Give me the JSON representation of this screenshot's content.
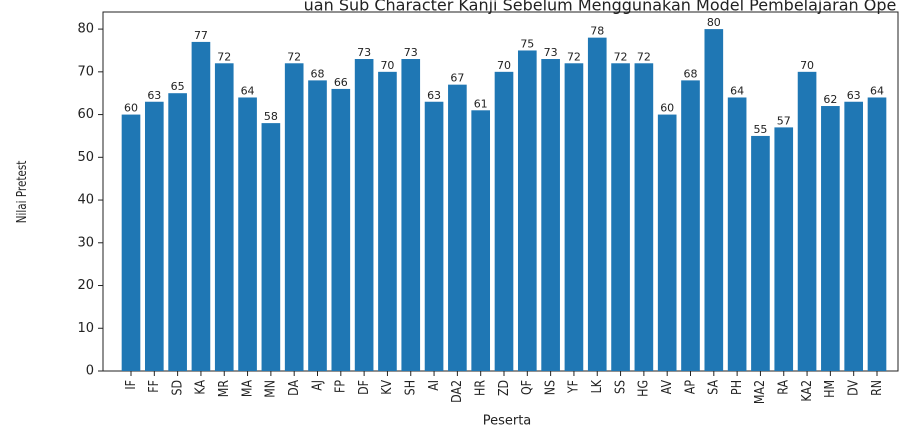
{
  "chart_data": {
    "type": "bar",
    "title": "uan Sub Character Kanji Sebelum Menggunakan Model Pembelajaran Ope",
    "x_label": "Peserta",
    "y_label": "Nilai Pretest",
    "categories": [
      "IF",
      "FF",
      "SD",
      "KA",
      "MR",
      "MA",
      "MN",
      "DA",
      "AJ",
      "FP",
      "DF",
      "KV",
      "SH",
      "AI",
      "DA2",
      "HR",
      "ZD",
      "QF",
      "NS",
      "YF",
      "LK",
      "SS",
      "HG",
      "AV",
      "AP",
      "SA",
      "PH",
      "MA2",
      "RA",
      "KA2",
      "HM",
      "DV",
      "RN"
    ],
    "values": [
      60,
      63,
      65,
      77,
      72,
      64,
      58,
      72,
      68,
      66,
      73,
      70,
      73,
      63,
      67,
      61,
      70,
      75,
      73,
      72,
      78,
      72,
      72,
      60,
      68,
      80,
      64,
      55,
      57,
      70,
      62,
      63,
      64
    ],
    "color": "#1f77b4",
    "ylim": [
      0,
      84
    ],
    "yticks": [
      0,
      10,
      20,
      30,
      40,
      50,
      60,
      70,
      80
    ]
  }
}
